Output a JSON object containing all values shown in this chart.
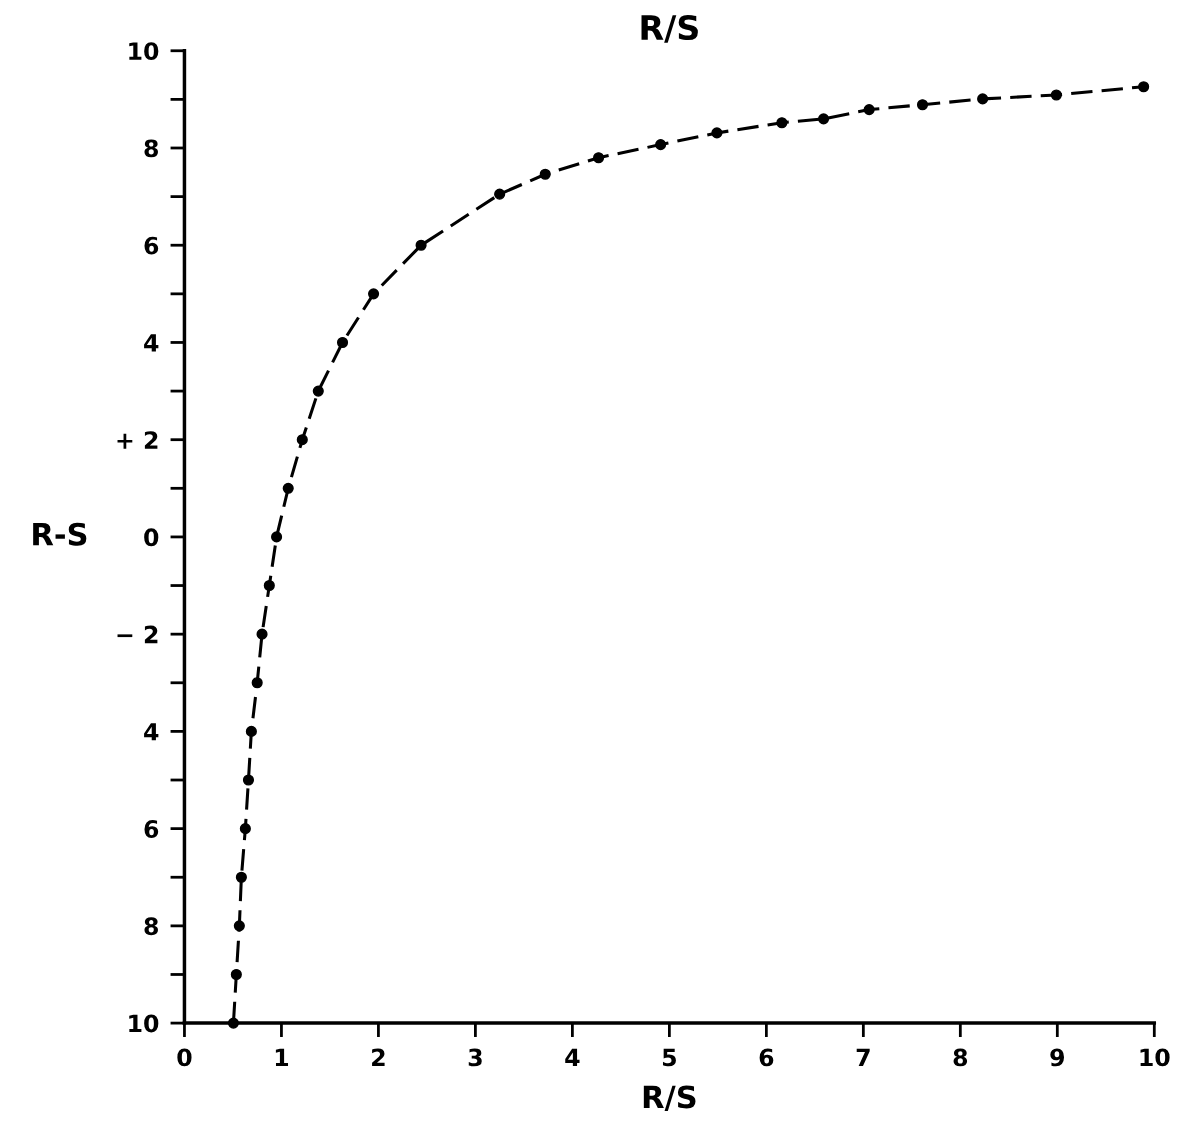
{
  "chart_data": {
    "type": "line",
    "title": "R/S",
    "xlabel": "R/S",
    "ylabel": "R-S",
    "x": [
      0.505,
      0.535,
      0.566,
      0.587,
      0.628,
      0.66,
      0.69,
      0.75,
      0.8,
      0.875,
      0.95,
      1.07,
      1.215,
      1.38,
      1.63,
      1.95,
      2.44,
      3.25,
      3.72,
      4.27,
      4.91,
      5.49,
      6.16,
      6.59,
      7.06,
      7.61,
      8.23,
      8.99,
      9.89
    ],
    "series": [
      {
        "color": "#000000",
        "values": [
          -10,
          -9,
          -8,
          -7,
          -6,
          -5,
          -4,
          -3,
          -2,
          -1,
          0,
          1,
          2,
          3,
          4,
          5,
          6,
          7.05,
          7.46,
          7.8,
          8.07,
          8.31,
          8.52,
          8.6,
          8.79,
          8.89,
          9.01,
          9.09,
          9.26
        ]
      }
    ],
    "xlim": [
      0,
      10
    ],
    "ylim": [
      -10,
      10
    ],
    "xticks": [
      0,
      1,
      2,
      3,
      4,
      5,
      6,
      7,
      8,
      9,
      10
    ],
    "yticks": [
      {
        "value": -10,
        "label": "10"
      },
      {
        "value": -9,
        "label": null
      },
      {
        "value": -8,
        "label": "8"
      },
      {
        "value": -7,
        "label": null
      },
      {
        "value": -6,
        "label": "6"
      },
      {
        "value": -5,
        "label": null
      },
      {
        "value": -4,
        "label": "4"
      },
      {
        "value": -3,
        "label": null
      },
      {
        "value": -2,
        "label": "− 2"
      },
      {
        "value": -1,
        "label": null
      },
      0,
      {
        "value": 1,
        "label": null
      },
      {
        "value": 2,
        "label": "+ 2"
      },
      {
        "value": 3,
        "label": null
      },
      4,
      {
        "value": 5,
        "label": null
      },
      6,
      {
        "value": 7,
        "label": null
      },
      8,
      {
        "value": 9,
        "label": null
      },
      10
    ],
    "marker": "circle",
    "line_style": "dashed",
    "grid": false,
    "legend": false
  }
}
